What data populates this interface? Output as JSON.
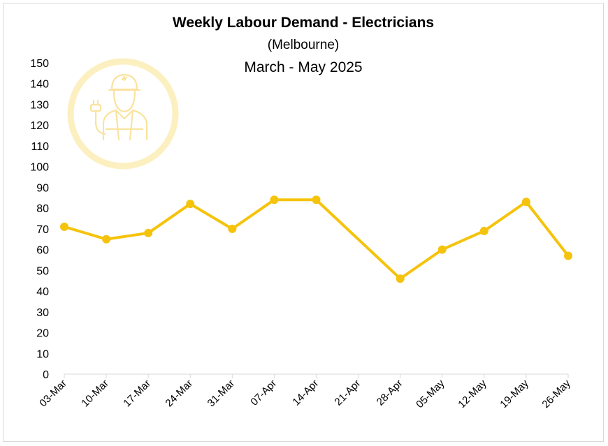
{
  "chart_data": {
    "type": "line",
    "title": "Weekly Labour Demand - Electricians",
    "subtitle": "(Melbourne)",
    "subtitle2": "March - May 2025",
    "categories": [
      "03-Mar",
      "10-Mar",
      "17-Mar",
      "24-Mar",
      "31-Mar",
      "07-Apr",
      "14-Apr",
      "21-Apr",
      "28-Apr",
      "05-May",
      "12-May",
      "19-May",
      "26-May"
    ],
    "series": [
      {
        "values": [
          71,
          65,
          68,
          82,
          70,
          84,
          84,
          null,
          46,
          60,
          69,
          83,
          57
        ],
        "color": "#f5c30c"
      }
    ],
    "ylim": [
      0,
      150
    ],
    "yticks": [
      0,
      10,
      20,
      30,
      40,
      50,
      60,
      70,
      80,
      90,
      100,
      110,
      120,
      130,
      140,
      150
    ],
    "grid": false,
    "legend": "none",
    "watermark_icon": "electrician-worker-icon",
    "watermark_color": "#fbe9a8"
  }
}
